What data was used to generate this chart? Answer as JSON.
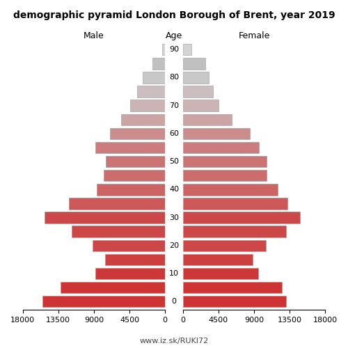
{
  "title": "demographic pyramid London Borough of Brent, year 2019",
  "male_label": "Male",
  "female_label": "Female",
  "age_label": "Age",
  "url_label": "www.iz.sk/RUKI72",
  "age_groups": [
    0,
    5,
    10,
    15,
    20,
    25,
    30,
    35,
    40,
    45,
    50,
    55,
    60,
    65,
    70,
    75,
    80,
    85,
    90
  ],
  "male_values": [
    15500,
    13200,
    8800,
    7600,
    9200,
    11800,
    15200,
    12200,
    8600,
    7800,
    7500,
    8800,
    7000,
    5600,
    4400,
    3500,
    2800,
    1600,
    400
  ],
  "female_values": [
    13000,
    12500,
    9500,
    8800,
    10500,
    13000,
    14800,
    13200,
    12000,
    10600,
    10600,
    9600,
    8500,
    6200,
    4500,
    3800,
    3300,
    2800,
    1100
  ],
  "bar_colors": [
    "#cd3333",
    "#cd3535",
    "#cc3838",
    "#cc4040",
    "#cc4848",
    "#cc4848",
    "#cc4848",
    "#cc5858",
    "#cc6464",
    "#cc6c6c",
    "#cc7474",
    "#cc7c7c",
    "#cc8c8c",
    "#cca4a4",
    "#ccb4b4",
    "#ccbebe",
    "#c8c8c8",
    "#c0c0c0",
    "#d4d4d4"
  ],
  "xlim": 18000,
  "xticks_left": [
    18000,
    13500,
    9000,
    4500,
    0
  ],
  "xticks_right": [
    0,
    4500,
    9000,
    13500,
    18000
  ],
  "background_color": "#ffffff",
  "bar_height": 0.82,
  "edge_color": "#999999",
  "edge_width": 0.4,
  "title_fontsize": 10,
  "label_fontsize": 9,
  "tick_fontsize": 8,
  "age_tick_fontsize": 8
}
